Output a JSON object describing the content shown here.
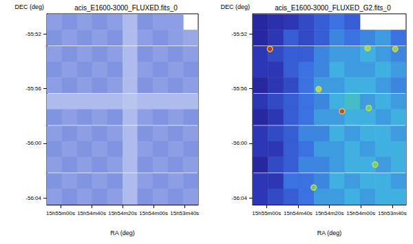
{
  "chart_data": [
    {
      "type": "heatmap",
      "title": "acis_E1600-3000_FLUXED.fits_0",
      "x_label": "RA (deg)",
      "y_label": "DEC (deg)",
      "xlim": [
        238.787,
        238.38
      ],
      "ylim": [
        -56.075,
        -55.842
      ],
      "xticks": [
        {
          "value": 238.75,
          "label": "15h55m00s"
        },
        {
          "value": 238.66667,
          "label": "15h54m40s"
        },
        {
          "value": 238.58333,
          "label": "15h54m20s"
        },
        {
          "value": 238.5,
          "label": "15h54m00s"
        },
        {
          "value": 238.41667,
          "label": "15h53m40s"
        }
      ],
      "yticks": [
        {
          "value": -55.86667,
          "label": "-55:52"
        },
        {
          "value": -55.93333,
          "label": "-55:56"
        },
        {
          "value": -56.0,
          "label": "-56:00"
        },
        {
          "value": -56.06667,
          "label": "-56:04"
        }
      ],
      "grid": false,
      "value_range": [
        0,
        1
      ],
      "x": [
        238.767,
        238.726,
        238.685,
        238.645,
        238.604,
        238.563,
        238.523,
        238.482,
        238.441,
        238.4
      ],
      "y": [
        -55.852,
        -55.871,
        -55.891,
        -55.91,
        -55.929,
        -55.949,
        -55.968,
        -55.988,
        -56.007,
        -56.026,
        -56.046,
        -56.065
      ],
      "cells": [
        [
          0.5,
          0.55,
          0.5,
          0.55,
          0.5,
          0.35,
          0.55,
          0.5,
          0.5,
          null
        ],
        [
          0.55,
          0.5,
          0.55,
          0.5,
          0.55,
          0.35,
          0.5,
          0.55,
          0.5,
          0.45
        ],
        [
          0.5,
          0.55,
          0.5,
          0.55,
          0.5,
          0.35,
          0.55,
          0.5,
          0.55,
          0.5
        ],
        [
          0.55,
          0.5,
          0.55,
          0.5,
          0.55,
          0.35,
          0.5,
          0.55,
          0.5,
          0.55
        ],
        [
          0.5,
          0.55,
          0.5,
          0.55,
          0.5,
          0.35,
          0.55,
          0.5,
          0.55,
          0.5
        ],
        [
          0.35,
          0.35,
          0.35,
          0.35,
          0.35,
          0.3,
          0.35,
          0.35,
          0.35,
          0.35
        ],
        [
          0.55,
          0.5,
          0.55,
          0.5,
          0.55,
          0.35,
          0.5,
          0.55,
          0.5,
          0.55
        ],
        [
          0.5,
          0.55,
          0.5,
          0.55,
          0.5,
          0.35,
          0.55,
          0.5,
          0.55,
          0.5
        ],
        [
          0.55,
          0.5,
          0.55,
          0.5,
          0.55,
          0.35,
          0.5,
          0.55,
          0.5,
          0.55
        ],
        [
          0.5,
          0.55,
          0.5,
          0.55,
          0.5,
          0.35,
          0.55,
          0.5,
          0.55,
          0.5
        ],
        [
          0.55,
          0.5,
          0.55,
          0.5,
          0.55,
          0.35,
          0.5,
          0.55,
          0.5,
          0.55
        ],
        [
          0.5,
          0.55,
          0.5,
          0.55,
          0.5,
          0.35,
          0.55,
          0.5,
          0.55,
          0.5
        ]
      ]
    },
    {
      "type": "heatmap",
      "title": "acis_E1600-3000_FLUXED_G2.fits_0",
      "x_label": "RA (deg)",
      "y_label": "DEC (deg)",
      "xlim": [
        238.787,
        238.38
      ],
      "ylim": [
        -56.075,
        -55.842
      ],
      "xticks": [
        {
          "value": 238.75,
          "label": "15h55m00s"
        },
        {
          "value": 238.66667,
          "label": "15h54m40s"
        },
        {
          "value": 238.58333,
          "label": "15h54m20s"
        },
        {
          "value": 238.5,
          "label": "15h54m00s"
        },
        {
          "value": 238.41667,
          "label": "15h53m40s"
        }
      ],
      "yticks": [
        {
          "value": -55.86667,
          "label": "-55:52"
        },
        {
          "value": -55.93333,
          "label": "-55:56"
        },
        {
          "value": -56.0,
          "label": "-56:00"
        },
        {
          "value": -56.06667,
          "label": "-56:04"
        }
      ],
      "grid": false,
      "value_range": [
        0,
        1
      ],
      "x": [
        238.767,
        238.726,
        238.685,
        238.645,
        238.604,
        238.563,
        238.523,
        238.482,
        238.441,
        238.4
      ],
      "y": [
        -55.852,
        -55.871,
        -55.891,
        -55.91,
        -55.929,
        -55.949,
        -55.968,
        -55.988,
        -56.007,
        -56.026,
        -56.046,
        -56.065
      ],
      "cells": [
        [
          0.15,
          0.18,
          0.2,
          0.25,
          0.3,
          0.35,
          0.3,
          null,
          null,
          null
        ],
        [
          0.15,
          0.2,
          0.3,
          0.25,
          0.3,
          0.4,
          0.35,
          0.4,
          0.45,
          0.35
        ],
        [
          0.2,
          0.25,
          0.3,
          0.3,
          0.4,
          0.45,
          0.45,
          0.5,
          0.45,
          0.4
        ],
        [
          0.2,
          0.2,
          0.3,
          0.35,
          0.4,
          0.5,
          0.45,
          0.45,
          0.5,
          0.45
        ],
        [
          0.15,
          0.2,
          0.25,
          0.35,
          0.45,
          0.45,
          0.5,
          0.5,
          0.45,
          0.4
        ],
        [
          0.2,
          0.25,
          0.3,
          0.35,
          0.4,
          0.5,
          0.55,
          0.45,
          0.5,
          0.45
        ],
        [
          0.15,
          0.2,
          0.3,
          0.35,
          0.45,
          0.45,
          0.5,
          0.5,
          0.45,
          0.5
        ],
        [
          0.2,
          0.25,
          0.3,
          0.4,
          0.4,
          0.5,
          0.45,
          0.5,
          0.5,
          0.45
        ],
        [
          0.2,
          0.2,
          0.3,
          0.35,
          0.45,
          0.45,
          0.5,
          0.45,
          0.5,
          0.5
        ],
        [
          0.15,
          0.25,
          0.3,
          0.4,
          0.4,
          0.45,
          0.5,
          0.5,
          0.45,
          0.5
        ],
        [
          0.2,
          0.2,
          0.35,
          0.35,
          0.4,
          0.5,
          0.45,
          0.5,
          0.5,
          0.45
        ],
        [
          0.2,
          0.25,
          0.3,
          0.35,
          0.45,
          0.45,
          0.5,
          0.45,
          0.5,
          0.5
        ]
      ],
      "sources": {
        "x": [
          238.741,
          238.55,
          238.612,
          238.482,
          238.409,
          238.479,
          238.462,
          238.625
        ],
        "y": [
          -55.885,
          -55.961,
          -55.934,
          -55.884,
          -55.885,
          -55.957,
          -56.026,
          -56.054
        ],
        "values": [
          1.0,
          1.0,
          0.8,
          0.75,
          0.75,
          0.7,
          0.7,
          0.7
        ]
      }
    }
  ]
}
